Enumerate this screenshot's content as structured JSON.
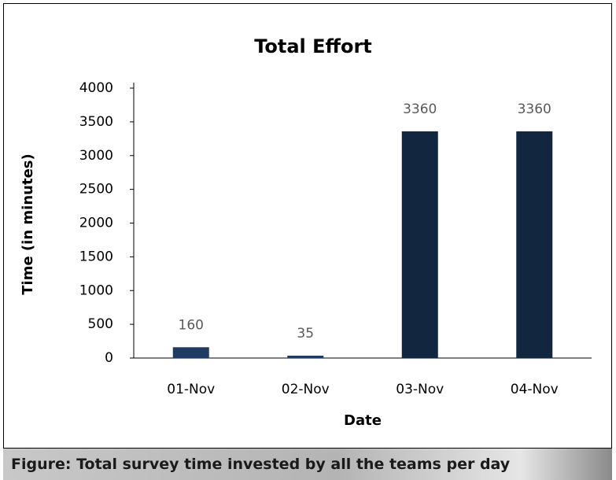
{
  "chart_data": {
    "type": "bar",
    "title": "Total Effort",
    "x_label": "Date",
    "y_label": "Time (in minutes)",
    "categories": [
      "01-Nov",
      "02-Nov",
      "03-Nov",
      "04-Nov"
    ],
    "values": [
      160,
      35,
      3360,
      3360
    ],
    "colors": [
      "#203b62",
      "#203b62",
      "#12263f",
      "#12263f"
    ],
    "ylim": [
      0,
      4000
    ],
    "yticks": [
      0,
      500,
      1000,
      1500,
      2000,
      2500,
      3000,
      3500,
      4000
    ],
    "grid": false
  },
  "caption": "Figure: Total survey time invested by all the teams per day"
}
